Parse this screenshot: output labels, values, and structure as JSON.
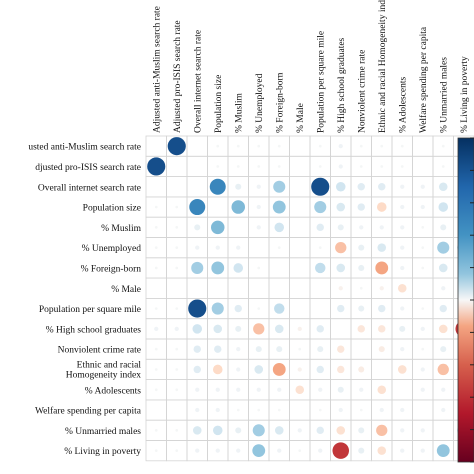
{
  "chart_data": {
    "type": "heatmap",
    "subtype": "correlation-matrix",
    "title": "",
    "variables": [
      "Adjusted anti-Muslim search rate",
      "Adjusted pro-ISIS search rate",
      "Overall internet search rate",
      "Population size",
      "% Muslim",
      "% Unemployed",
      "% Foreign-born",
      "% Male",
      "Population per square mile",
      "% High school graduates",
      "Nonviolent crime rate",
      "Ethnic and racial Homogeneity index",
      "% Adolescents",
      "Welfare spending per capita",
      "% Unmarried males",
      "% Living in poverty"
    ],
    "row_labels": [
      "usted anti-Muslim search rate",
      "djusted pro-ISIS search rate",
      "Overall internet search rate",
      "Population size",
      "% Muslim",
      "% Unemployed",
      "% Foreign-born",
      "% Male",
      "Population per square mile",
      "% High school graduates",
      "Nonviolent crime rate",
      "Ethnic and racial Homogeneity index",
      "% Adolescents",
      "Welfare spending per capita",
      "% Unmarried males",
      "% Living in poverty"
    ],
    "column_labels": [
      "Adjusted anti-Muslim search rate",
      "Adjusted pro-ISIS search rate",
      "Overall internet search rate",
      "Population size",
      "% Muslim",
      "% Unemployed",
      "% Foreign-born",
      "% Male",
      "Population per square mile",
      "% High school graduates",
      "Nonviolent crime rate",
      "Ethnic and racial Homogeneity index",
      "% Adolescents",
      "Welfare spending per capita",
      "% Unmarried males",
      "% Living in poverty"
    ],
    "values": [
      [
        0,
        0.9,
        0,
        0.02,
        0.02,
        0.02,
        0.02,
        0,
        0.02,
        0.05,
        0.02,
        0.02,
        0.02,
        0,
        0.02,
        0.02
      ],
      [
        0.9,
        0,
        0,
        0.02,
        0.02,
        0.02,
        0.02,
        0,
        0.02,
        0.05,
        0.02,
        0.02,
        0.02,
        0,
        0.02,
        0.02
      ],
      [
        0,
        0,
        0,
        0.7,
        0.1,
        0.05,
        0.4,
        0,
        0.9,
        0.25,
        0.15,
        0.15,
        0.05,
        0.05,
        0.2,
        0.05
      ],
      [
        0.02,
        0.02,
        0.7,
        0,
        0.5,
        0.05,
        0.45,
        0,
        0.4,
        0.2,
        0.15,
        -0.25,
        0.05,
        0.05,
        0.25,
        0.05
      ],
      [
        0.02,
        0.02,
        0.1,
        0.5,
        0,
        0.05,
        0.25,
        0,
        0.15,
        0.1,
        0.05,
        0.05,
        0.05,
        0.02,
        0.1,
        0.05
      ],
      [
        0.02,
        0.02,
        0.05,
        0.05,
        0.05,
        0,
        0.02,
        0,
        0.02,
        -0.35,
        0.1,
        0.2,
        0.05,
        0.02,
        0.4,
        0.45
      ],
      [
        0.02,
        0.02,
        0.4,
        0.45,
        0.25,
        0.02,
        0,
        0,
        0.3,
        0.2,
        0.1,
        -0.45,
        0.05,
        0.02,
        0.2,
        0.05
      ],
      [
        0,
        0,
        0,
        0,
        0,
        0,
        0,
        0,
        0,
        -0.05,
        0.02,
        -0.05,
        -0.2,
        0,
        0.05,
        0.02
      ],
      [
        0.02,
        0.02,
        0.9,
        0.4,
        0.15,
        0.02,
        0.3,
        0,
        0,
        0.15,
        0.1,
        0.15,
        0.05,
        0.02,
        0.15,
        0.05
      ],
      [
        0.05,
        0.05,
        0.25,
        0.2,
        0.1,
        -0.35,
        0.2,
        -0.05,
        0.15,
        0,
        -0.15,
        -0.15,
        0.1,
        0.05,
        -0.2,
        -0.75
      ],
      [
        0.02,
        0.02,
        0.15,
        0.15,
        0.05,
        0.1,
        0.1,
        0.02,
        0.1,
        -0.15,
        0,
        -0.1,
        0.05,
        0.02,
        0.1,
        0.1
      ],
      [
        0.02,
        0.02,
        0.15,
        -0.25,
        0.05,
        0.2,
        -0.45,
        -0.05,
        0.15,
        -0.15,
        -0.1,
        0,
        -0.2,
        0.05,
        -0.35,
        -0.2
      ],
      [
        0.02,
        0.02,
        0.05,
        0.05,
        0.05,
        0.05,
        0.05,
        -0.2,
        0.05,
        0.1,
        0.05,
        -0.2,
        0,
        0.05,
        0.05,
        0.05
      ],
      [
        0,
        0,
        0.05,
        0.05,
        0.02,
        0.02,
        0.02,
        0,
        0.02,
        0.05,
        0.02,
        0.05,
        0.05,
        0,
        0.05,
        0.05
      ],
      [
        0.02,
        0.02,
        0.2,
        0.25,
        0.1,
        0.4,
        0.2,
        0.05,
        0.15,
        -0.2,
        0.1,
        -0.35,
        0.05,
        0.05,
        0,
        0.45
      ],
      [
        0.02,
        0.02,
        0.05,
        0.05,
        0.05,
        0.45,
        0.05,
        0.02,
        0.05,
        -0.75,
        0.1,
        -0.2,
        0.05,
        0.05,
        0.45,
        0
      ]
    ],
    "color_scale": {
      "range": [
        -1,
        1
      ],
      "negative_color": "#67001f",
      "mid_color": "#f7f7f7",
      "positive_color": "#053061"
    },
    "grid": true,
    "legend": "right"
  }
}
